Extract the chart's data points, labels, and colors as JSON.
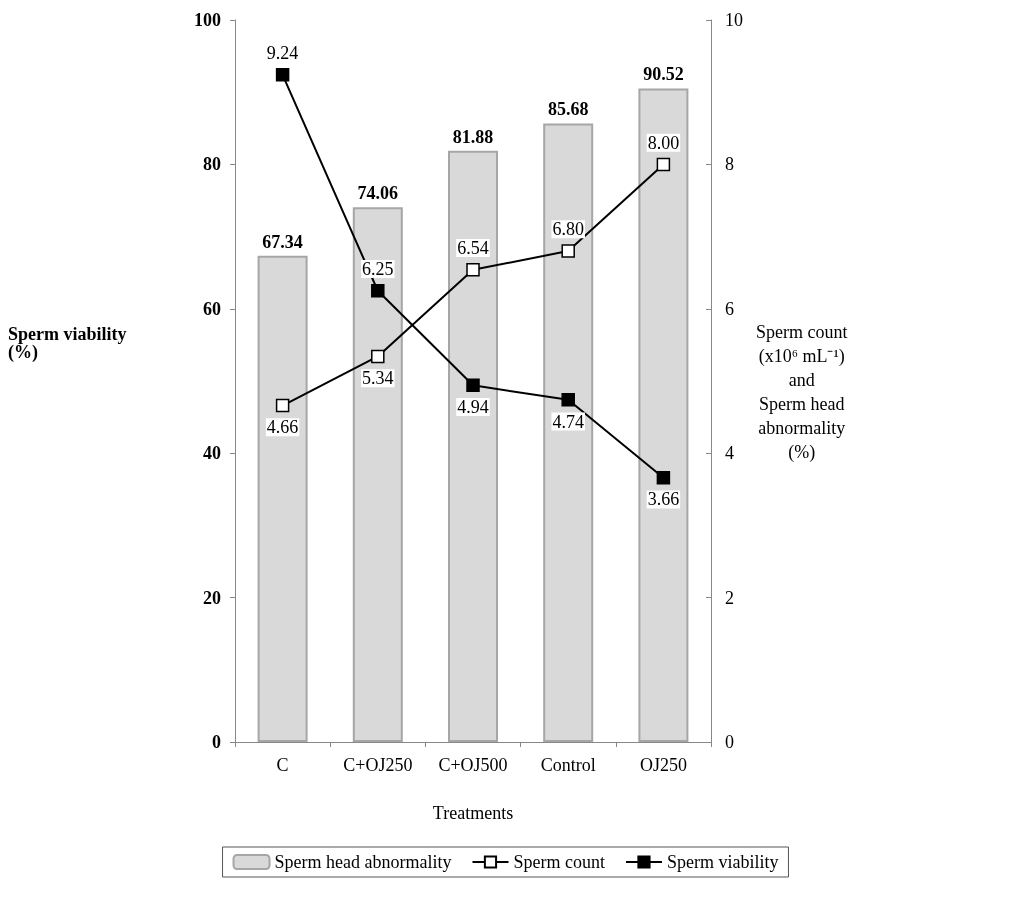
{
  "chart_data": {
    "type": "bar",
    "xlabel": "Treatments",
    "ylabel": "Sperm viability (%)",
    "y2label": "Sperm count\n(x10⁶ mL⁻¹)\nand\nSperm head\nabnormality\n(%)",
    "categories": [
      "C",
      "C+OJ250",
      "C+OJ500",
      "Control",
      "OJ250"
    ],
    "series": [
      {
        "name": "Sperm head abnormality",
        "color": "#d9d9d9",
        "values": [
          67.34,
          74.06,
          81.88,
          85.68,
          90.52
        ]
      },
      {
        "name": "Sperm count",
        "type": "line",
        "axis": "y2",
        "color": "#000000",
        "colors": [
          "#ffffff",
          "#ffffff",
          "#ffffff",
          "#ffffff",
          "#ffffff"
        ],
        "values": [
          4.66,
          5.34,
          6.54,
          6.8,
          8.0
        ],
        "value_labels": [
          "4.66",
          "5.34",
          "6.54",
          "6.80",
          "8.00"
        ]
      },
      {
        "name": "Sperm viability",
        "type": "line",
        "axis": "y2",
        "color": "#000000",
        "values": [
          9.24,
          6.25,
          4.94,
          4.74,
          3.66
        ],
        "value_labels": [
          "9.24",
          "6.25",
          "4.94",
          "4.74",
          "3.66"
        ]
      }
    ],
    "ylim": [
      0,
      100
    ],
    "yticks": [
      0,
      20,
      40,
      60,
      80,
      100
    ],
    "y2lim": [
      0,
      10
    ],
    "y2ticks": [
      0,
      2,
      4,
      6,
      8,
      10
    ],
    "data_labels": true,
    "marker": "square",
    "legend": "bottom",
    "grid": false
  }
}
